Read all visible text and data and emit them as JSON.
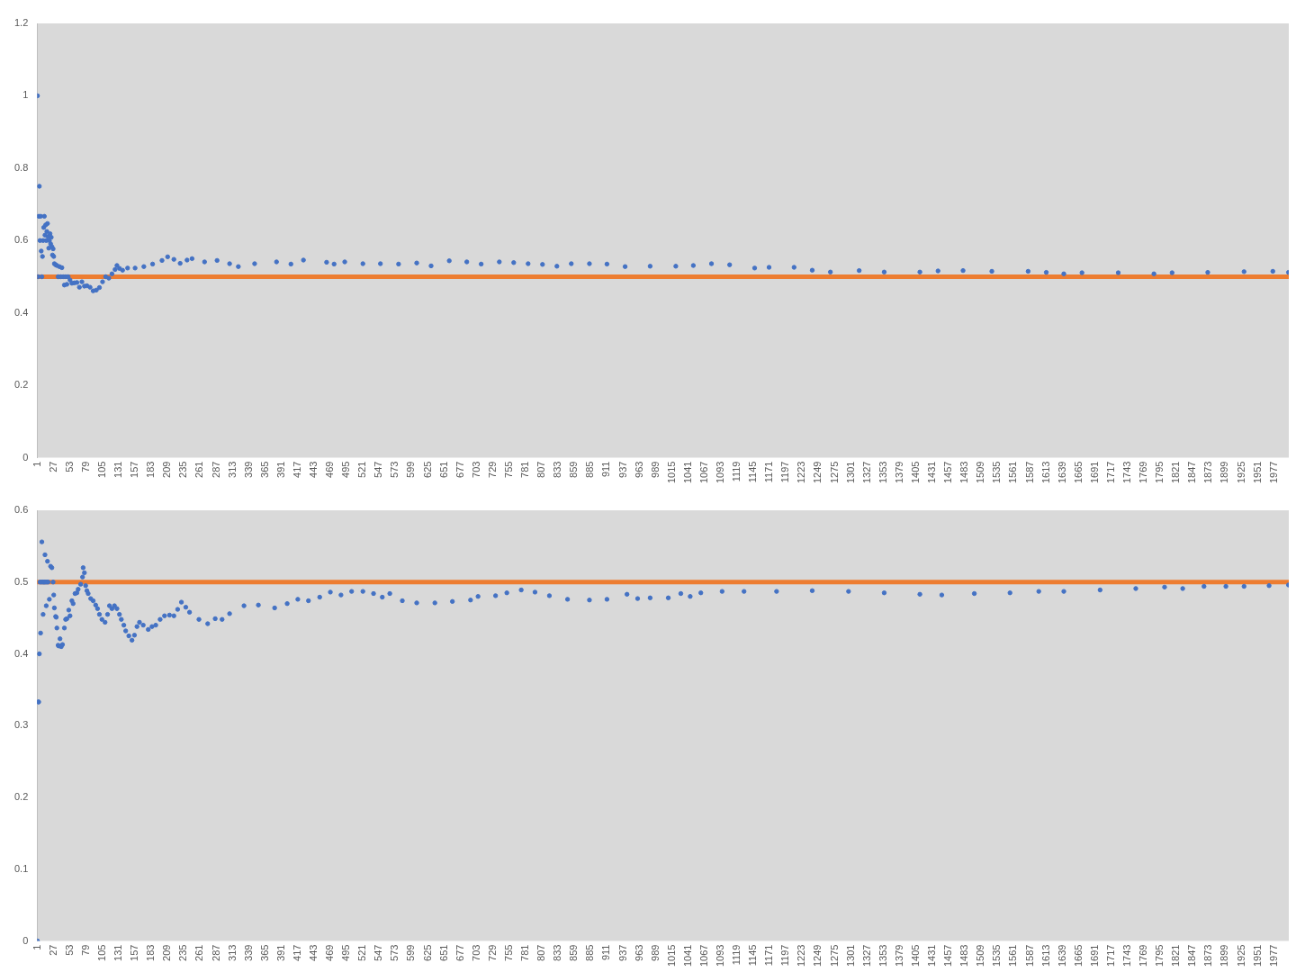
{
  "chart_data": [
    {
      "type": "scatter",
      "marker": "circle",
      "x": [
        1,
        2,
        3,
        4,
        5,
        6,
        7,
        8,
        9,
        10,
        11,
        12,
        13,
        14,
        15,
        16,
        17,
        18,
        19,
        20,
        21,
        22,
        23,
        24,
        25,
        26,
        27,
        28,
        30,
        32,
        34,
        36,
        38,
        40,
        42,
        44,
        46,
        48,
        50,
        53,
        56,
        60,
        64,
        68,
        72,
        76,
        80,
        85,
        90,
        95,
        100,
        105,
        110,
        115,
        120,
        125,
        128,
        132,
        137,
        145,
        157,
        171,
        185,
        200,
        209,
        219,
        229,
        240,
        248,
        268,
        288,
        308,
        322,
        348,
        383,
        406,
        426,
        463,
        475,
        492,
        521,
        549,
        578,
        607,
        630,
        659,
        687,
        710,
        739,
        762,
        785,
        808,
        831,
        854,
        883,
        911,
        940,
        980,
        1021,
        1049,
        1078,
        1107,
        1147,
        1170,
        1210,
        1239,
        1268,
        1314,
        1354,
        1411,
        1440,
        1480,
        1526,
        1584,
        1613,
        1641,
        1670,
        1728,
        1785,
        1814,
        1871,
        1929,
        1975,
        2000
      ],
      "series": [
        {
          "color": "#4472c4",
          "values": [
            1.0,
            0.5,
            0.667,
            0.75,
            0.6,
            0.667,
            0.571,
            0.5,
            0.556,
            0.6,
            0.636,
            0.667,
            0.615,
            0.643,
            0.6,
            0.625,
            0.647,
            0.611,
            0.579,
            0.6,
            0.619,
            0.591,
            0.609,
            0.583,
            0.56,
            0.577,
            0.556,
            0.536,
            0.533,
            0.531,
            0.5,
            0.528,
            0.5,
            0.525,
            0.5,
            0.477,
            0.5,
            0.479,
            0.5,
            0.491,
            0.482,
            0.483,
            0.484,
            0.471,
            0.486,
            0.474,
            0.475,
            0.471,
            0.461,
            0.463,
            0.47,
            0.486,
            0.5,
            0.496,
            0.508,
            0.52,
            0.531,
            0.523,
            0.518,
            0.524,
            0.524,
            0.528,
            0.535,
            0.545,
            0.555,
            0.548,
            0.537,
            0.546,
            0.55,
            0.541,
            0.545,
            0.536,
            0.528,
            0.536,
            0.541,
            0.535,
            0.546,
            0.54,
            0.535,
            0.541,
            0.536,
            0.536,
            0.535,
            0.538,
            0.53,
            0.544,
            0.541,
            0.535,
            0.541,
            0.539,
            0.536,
            0.534,
            0.529,
            0.536,
            0.536,
            0.535,
            0.528,
            0.529,
            0.529,
            0.531,
            0.536,
            0.533,
            0.524,
            0.526,
            0.526,
            0.518,
            0.513,
            0.517,
            0.513,
            0.513,
            0.516,
            0.517,
            0.515,
            0.515,
            0.512,
            0.508,
            0.511,
            0.511,
            0.508,
            0.511,
            0.512,
            0.514,
            0.515,
            0.512
          ]
        }
      ],
      "xlim": [
        0.5,
        2000.5
      ],
      "xticks": [
        1,
        27,
        53,
        79,
        105,
        131,
        157,
        183,
        209,
        235,
        261,
        287,
        313,
        339,
        365,
        391,
        417,
        443,
        469,
        495,
        521,
        547,
        573,
        599,
        625,
        651,
        677,
        703,
        729,
        755,
        781,
        807,
        833,
        859,
        885,
        911,
        937,
        963,
        989,
        1015,
        1041,
        1067,
        1093,
        1119,
        1145,
        1171,
        1197,
        1223,
        1249,
        1275,
        1301,
        1327,
        1353,
        1379,
        1405,
        1431,
        1457,
        1483,
        1509,
        1535,
        1561,
        1587,
        1613,
        1639,
        1665,
        1691,
        1717,
        1743,
        1769,
        1795,
        1821,
        1847,
        1873,
        1899,
        1925,
        1951,
        1977
      ],
      "ylim": [
        0,
        1.2
      ],
      "yticks": [
        0,
        0.2,
        0.4,
        0.6,
        0.8,
        1,
        1.2
      ],
      "ref_lines": [
        {
          "axis": "y",
          "value": 0.5,
          "color": "#ed7d31"
        }
      ]
    },
    {
      "type": "scatter",
      "marker": "circle",
      "x": [
        1,
        2,
        3,
        4,
        5,
        6,
        7,
        8,
        9,
        10,
        11,
        12,
        13,
        14,
        15,
        16,
        17,
        18,
        20,
        22,
        24,
        26,
        27,
        28,
        30,
        31,
        32,
        34,
        35,
        37,
        39,
        41,
        44,
        46,
        48,
        51,
        53,
        56,
        58,
        61,
        64,
        66,
        70,
        73,
        74,
        76,
        78,
        80,
        82,
        86,
        90,
        94,
        97,
        100,
        104,
        109,
        113,
        116,
        120,
        124,
        128,
        132,
        135,
        139,
        142,
        147,
        152,
        156,
        160,
        164,
        170,
        178,
        184,
        190,
        197,
        204,
        212,
        219,
        225,
        231,
        238,
        244,
        259,
        273,
        285,
        296,
        308,
        331,
        354,
        380,
        400,
        417,
        434,
        452,
        469,
        486,
        503,
        521,
        538,
        552,
        564,
        584,
        607,
        636,
        664,
        693,
        705,
        733,
        751,
        774,
        796,
        819,
        848,
        883,
        911,
        943,
        960,
        980,
        1009,
        1029,
        1044,
        1061,
        1095,
        1130,
        1182,
        1239,
        1297,
        1354,
        1411,
        1446,
        1498,
        1555,
        1601,
        1641,
        1699,
        1756,
        1802,
        1831,
        1865,
        1900,
        1929,
        1969,
        2000
      ],
      "series": [
        {
          "color": "#4472c4",
          "values": [
            0,
            0.333,
            0.333,
            0.4,
            0.5,
            0.429,
            0.5,
            0.556,
            0.5,
            0.455,
            0.5,
            0.5,
            0.538,
            0.5,
            0.467,
            0.5,
            0.529,
            0.5,
            0.476,
            0.522,
            0.52,
            0.5,
            0.482,
            0.464,
            0.452,
            0.451,
            0.436,
            0.412,
            0.411,
            0.421,
            0.41,
            0.413,
            0.436,
            0.448,
            0.449,
            0.461,
            0.453,
            0.474,
            0.47,
            0.484,
            0.485,
            0.49,
            0.497,
            0.507,
            0.52,
            0.513,
            0.495,
            0.488,
            0.484,
            0.477,
            0.474,
            0.468,
            0.463,
            0.455,
            0.448,
            0.444,
            0.455,
            0.467,
            0.463,
            0.467,
            0.463,
            0.455,
            0.448,
            0.44,
            0.432,
            0.425,
            0.419,
            0.426,
            0.438,
            0.444,
            0.44,
            0.434,
            0.438,
            0.44,
            0.448,
            0.453,
            0.454,
            0.453,
            0.462,
            0.472,
            0.465,
            0.458,
            0.448,
            0.442,
            0.449,
            0.448,
            0.456,
            0.467,
            0.468,
            0.464,
            0.47,
            0.476,
            0.474,
            0.479,
            0.486,
            0.482,
            0.487,
            0.487,
            0.484,
            0.479,
            0.484,
            0.474,
            0.471,
            0.471,
            0.473,
            0.475,
            0.48,
            0.481,
            0.485,
            0.489,
            0.486,
            0.481,
            0.476,
            0.475,
            0.476,
            0.483,
            0.477,
            0.478,
            0.478,
            0.484,
            0.48,
            0.485,
            0.487,
            0.487,
            0.487,
            0.488,
            0.487,
            0.485,
            0.483,
            0.482,
            0.484,
            0.485,
            0.487,
            0.487,
            0.489,
            0.491,
            0.493,
            0.491,
            0.494,
            0.494,
            0.494,
            0.495,
            0.496
          ]
        }
      ],
      "xlim": [
        0.5,
        2000.5
      ],
      "xticks": [
        1,
        27,
        53,
        79,
        105,
        131,
        157,
        183,
        209,
        235,
        261,
        287,
        313,
        339,
        365,
        391,
        417,
        443,
        469,
        495,
        521,
        547,
        573,
        599,
        625,
        651,
        677,
        703,
        729,
        755,
        781,
        807,
        833,
        859,
        885,
        911,
        937,
        963,
        989,
        1015,
        1041,
        1067,
        1093,
        1119,
        1145,
        1171,
        1197,
        1223,
        1249,
        1275,
        1301,
        1327,
        1353,
        1379,
        1405,
        1431,
        1457,
        1483,
        1509,
        1535,
        1561,
        1587,
        1613,
        1639,
        1665,
        1691,
        1717,
        1743,
        1769,
        1795,
        1821,
        1847,
        1873,
        1899,
        1925,
        1951,
        1977
      ],
      "ylim": [
        0,
        0.6
      ],
      "yticks": [
        0,
        0.1,
        0.2,
        0.3,
        0.4,
        0.5,
        0.6
      ],
      "ref_lines": [
        {
          "axis": "y",
          "value": 0.5,
          "color": "#ed7d31"
        }
      ]
    }
  ]
}
